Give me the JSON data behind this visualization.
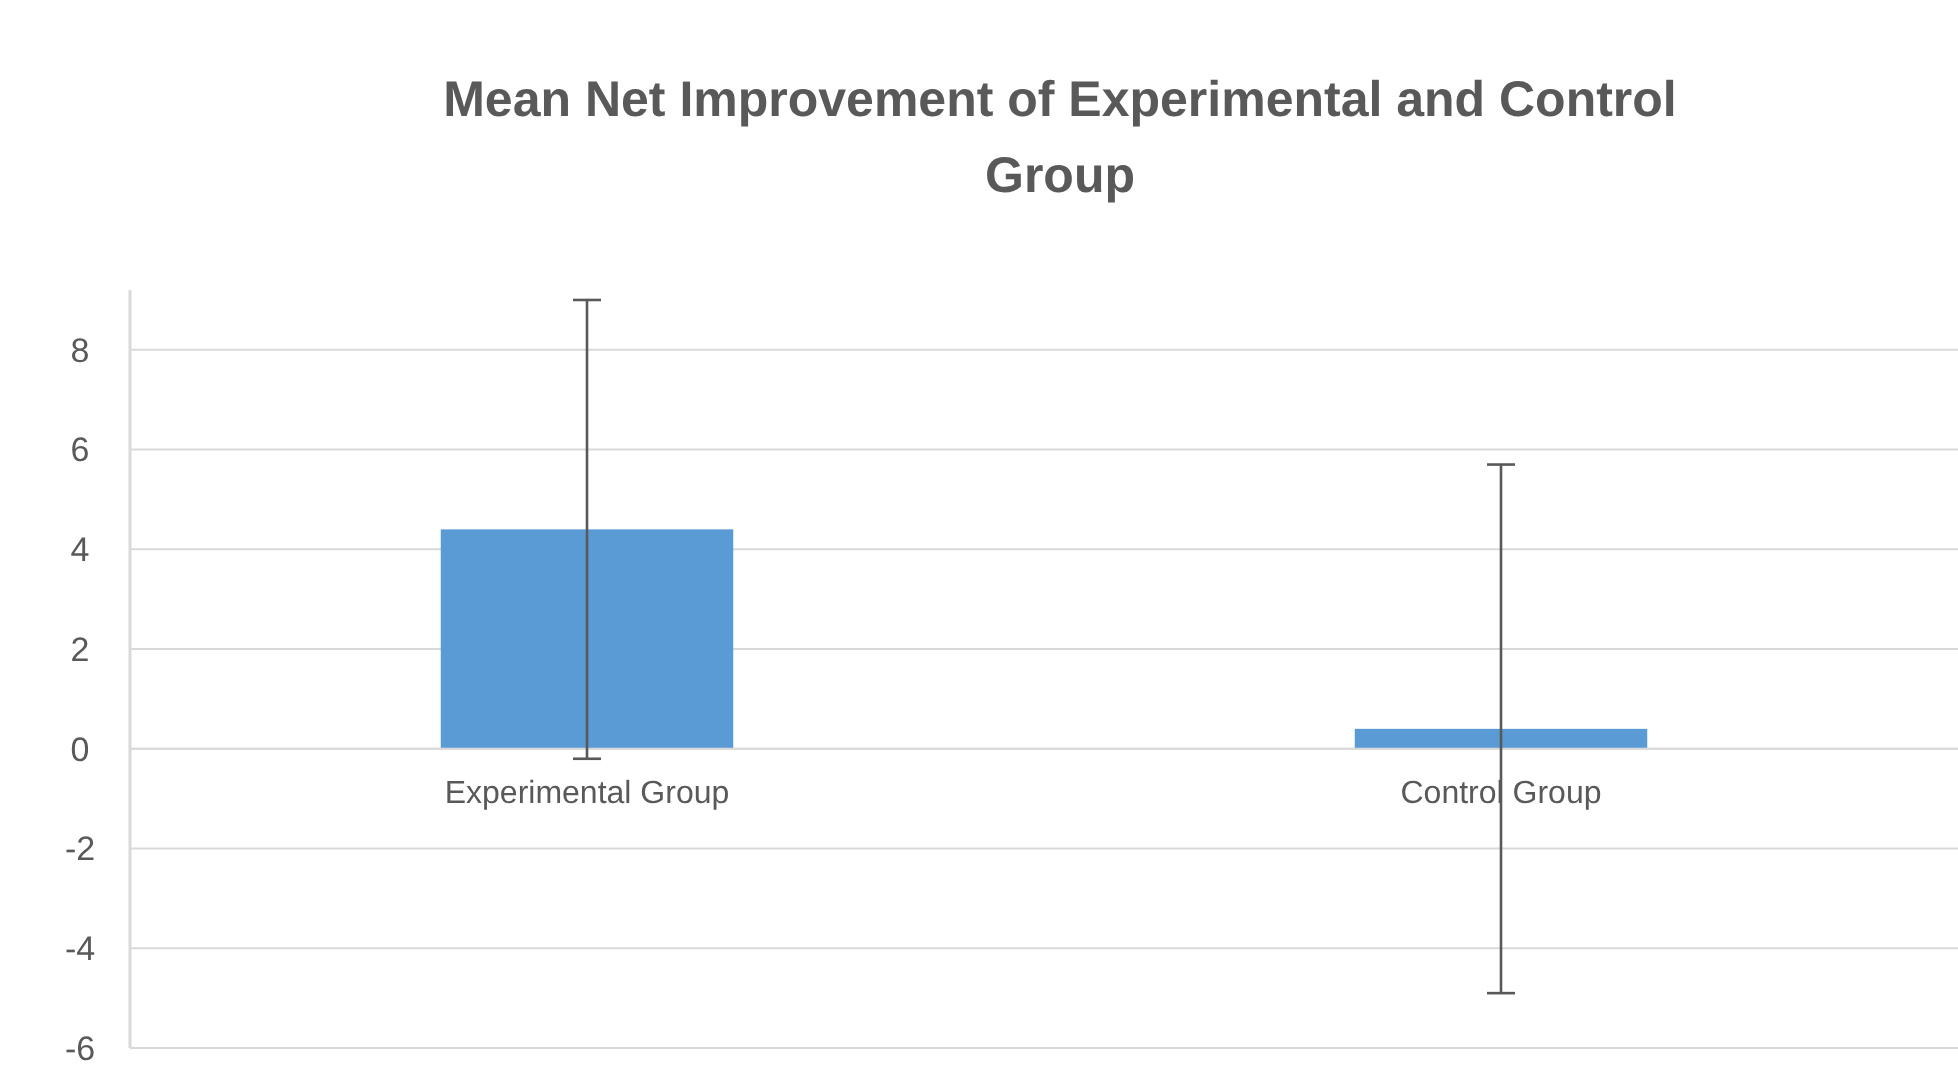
{
  "chart_data": {
    "type": "bar",
    "title": "Mean Net Improvement of Experimental and Control Group",
    "categories": [
      "Experimental Group",
      "Control Group"
    ],
    "values": [
      4.4,
      0.4
    ],
    "color": "#5b9bd5",
    "errors": [
      [
        -0.2,
        9.0
      ],
      [
        -4.9,
        5.7
      ]
    ],
    "ylim": [
      -6,
      9.2
    ],
    "yticks": [
      -6,
      -4,
      -2,
      0,
      2,
      4,
      6,
      8
    ],
    "grid": "y"
  }
}
